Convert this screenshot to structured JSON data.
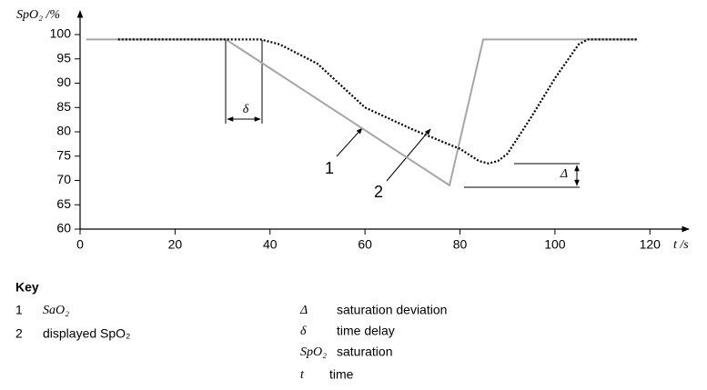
{
  "chart_data": {
    "type": "line",
    "y_label": "SpO₂ /%",
    "x_label": "t /s",
    "xlim": [
      0,
      128
    ],
    "ylim": [
      60,
      104
    ],
    "xticks": [
      0,
      20,
      40,
      60,
      80,
      100,
      120
    ],
    "yticks": [
      60,
      65,
      70,
      75,
      80,
      85,
      90,
      95,
      100
    ],
    "series": [
      {
        "name": "1",
        "color": "#a6a6a6",
        "style": "solid",
        "x": [
          1.3,
          30.7,
          77.8,
          84.9,
          117.3
        ],
        "values": [
          99,
          99,
          69,
          99,
          99
        ]
      },
      {
        "name": "2",
        "color": "#000000",
        "style": "dotted",
        "x": [
          8,
          38,
          42,
          50,
          60,
          70,
          80,
          84,
          86,
          88,
          90,
          95,
          100,
          105,
          107,
          117.5
        ],
        "values": [
          99,
          99,
          98,
          94,
          85,
          80.5,
          76.5,
          74,
          73.5,
          74,
          75.5,
          83,
          91,
          98,
          99,
          99
        ]
      }
    ],
    "annotations": {
      "delta_small": "δ",
      "delta_large": "Δ"
    }
  },
  "key": {
    "title": "Key",
    "left": [
      {
        "id": "1",
        "text": "SaO₂"
      },
      {
        "id": "2",
        "text": "displayed SpO₂"
      }
    ],
    "right": [
      {
        "symbol": "Δ",
        "text": "saturation deviation"
      },
      {
        "symbol": "δ",
        "text": "time delay"
      },
      {
        "symbol": "SpO₂",
        "text": "saturation"
      },
      {
        "symbol": "t",
        "text": "time"
      }
    ]
  }
}
